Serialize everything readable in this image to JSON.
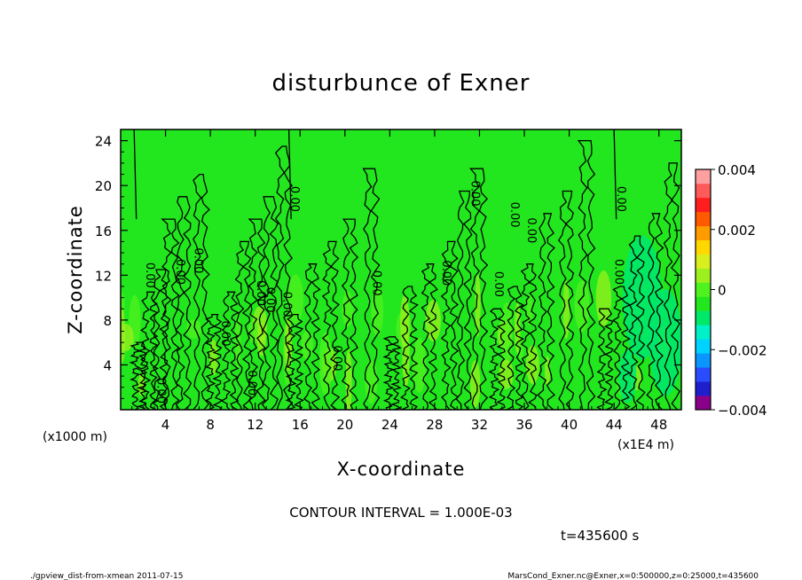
{
  "chart_data": {
    "type": "heatmap",
    "title": "disturbunce of Exner",
    "xlabel": "X-coordinate",
    "ylabel": "Z-coordinate",
    "x_unit_label": "(x1E4 m)",
    "y_unit_label": "(x1000 m)",
    "xlim": [
      0,
      50
    ],
    "ylim": [
      0,
      25
    ],
    "xticks": [
      4,
      8,
      12,
      16,
      20,
      24,
      28,
      32,
      36,
      40,
      44,
      48
    ],
    "xtick_labels": [
      "4",
      "8",
      "12",
      "16",
      "20",
      "24",
      "28",
      "32",
      "36",
      "40",
      "44",
      "48"
    ],
    "yticks": [
      4,
      8,
      12,
      16,
      20,
      24
    ],
    "ytick_labels": [
      "4",
      "8",
      "12",
      "16",
      "20",
      "24"
    ],
    "contour_interval_text": "CONTOUR INTERVAL = 1.000E-03",
    "time_text": "t=435600 s",
    "contour_label": "0.00",
    "colorbar": {
      "range": [
        -0.004,
        0.004
      ],
      "tick_values": [
        0.004,
        0.002,
        0,
        -0.002,
        -0.004
      ],
      "tick_labels": [
        "0.004",
        "0.002",
        "0",
        "−0.002",
        "−0.004"
      ],
      "colors": [
        "#8b008b",
        "#1e1ecd",
        "#2a4cff",
        "#0a96ff",
        "#00d2ff",
        "#00f0c8",
        "#00e86a",
        "#22e61e",
        "#4ff21e",
        "#9cf01e",
        "#d8ee1e",
        "#ffd800",
        "#ff9c00",
        "#ff5a00",
        "#ff1e1e",
        "#ff5a5a",
        "#ffa0a0"
      ]
    },
    "zero_contours_x": [
      1.3,
      2.2,
      3.2,
      4.1,
      5.3,
      6.8,
      8.0,
      9.4,
      10.6,
      11.8,
      13.0,
      14.2,
      15.2,
      16.7,
      18.4,
      20.1,
      22.0,
      23.9,
      25.4,
      27.2,
      29.0,
      30.3,
      31.6,
      33.3,
      34.8,
      36.1,
      37.6,
      39.4,
      41.2,
      42.9,
      44.3,
      45.7,
      47.3,
      48.8
    ]
  },
  "footer": {
    "left": "./gpview_dist-from-xmean   2011-07-15",
    "right": "MarsCond_Exner.nc@Exner,x=0:500000,z=0:25000,t=435600"
  }
}
